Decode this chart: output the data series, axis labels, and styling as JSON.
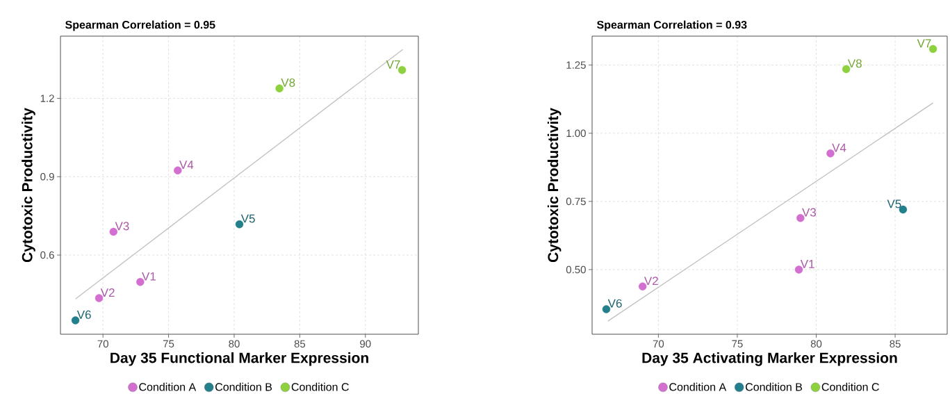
{
  "chart_data": [
    {
      "type": "scatter",
      "title": "Spearman Correlation = 0.95",
      "xlabel": "Day 35 Functional Marker Expression",
      "ylabel": "Cytotoxic Productivity",
      "xlim": [
        66.76,
        94.04
      ],
      "ylim": [
        0.297,
        1.438
      ],
      "xticks": [
        70,
        75,
        80,
        85,
        90
      ],
      "yticks": [
        0.6,
        0.9,
        1.2
      ],
      "grid": true,
      "legend": "bottom",
      "marker": "circle",
      "series": [
        {
          "name": "Condition A",
          "color": "#d36fd0",
          "x": [
            72.84,
            69.7,
            70.8,
            75.7
          ],
          "values": [
            0.497,
            0.435,
            0.689,
            0.924
          ],
          "value_labels": [
            "V1",
            "V2",
            "V3",
            "V4"
          ]
        },
        {
          "name": "Condition B",
          "color": "#237f8c",
          "x": [
            80.4,
            67.9
          ],
          "values": [
            0.718,
            0.35
          ],
          "value_labels": [
            "V5",
            "V6"
          ]
        },
        {
          "name": "Condition C",
          "color": "#8dd13f",
          "x": [
            92.8,
            83.45
          ],
          "values": [
            1.308,
            1.238
          ],
          "value_labels": [
            "V7",
            "V8"
          ]
        },
        {
          "type": "line",
          "marker": "none",
          "color": "#c0c0c0",
          "x": [
            67.9,
            92.85
          ],
          "values": [
            0.432,
            1.387
          ]
        }
      ]
    },
    {
      "type": "scatter",
      "title": "Spearman Correlation = 0.93",
      "xlabel": "Day 35 Activating Marker Expression",
      "ylabel": "Cytotoxic Productivity",
      "xlim": [
        65.8,
        88.3
      ],
      "ylim": [
        0.263,
        1.356
      ],
      "xticks": [
        70,
        75,
        80,
        85
      ],
      "yticks": [
        {
          "value": 0.5,
          "label": "0.50"
        },
        {
          "value": 0.75,
          "label": "0.75"
        },
        {
          "value": 1.0,
          "label": "1.00"
        },
        {
          "value": 1.25,
          "label": "1.25"
        }
      ],
      "grid": true,
      "legend": "bottom",
      "marker": "circle",
      "series": [
        {
          "name": "Condition A",
          "color": "#d36fd0",
          "x": [
            78.9,
            69.0,
            79.0,
            80.9
          ],
          "values": [
            0.5,
            0.438,
            0.689,
            0.926
          ],
          "value_labels": [
            "V1",
            "V2",
            "V3",
            "V4"
          ]
        },
        {
          "name": "Condition B",
          "color": "#237f8c",
          "x": [
            85.5,
            66.7
          ],
          "values": [
            0.72,
            0.355
          ],
          "value_labels": [
            "V5",
            "V6"
          ]
        },
        {
          "name": "Condition C",
          "color": "#8dd13f",
          "x": [
            87.4,
            81.9
          ],
          "values": [
            1.309,
            1.235
          ],
          "value_labels": [
            "V7",
            "V8"
          ]
        },
        {
          "type": "line",
          "marker": "none",
          "color": "#c0c0c0",
          "x": [
            66.8,
            87.4
          ],
          "values": [
            0.311,
            1.111
          ]
        }
      ]
    }
  ]
}
